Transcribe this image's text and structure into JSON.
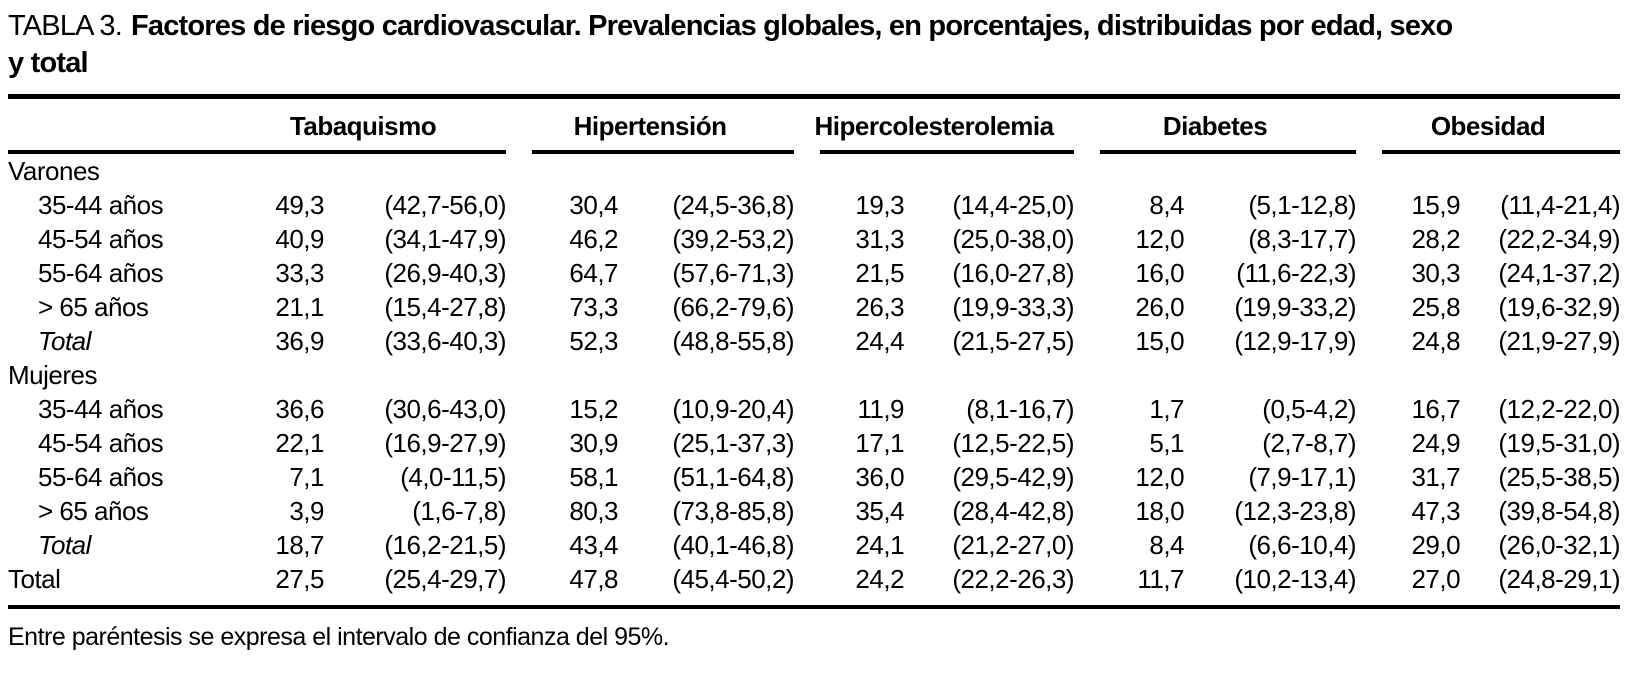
{
  "colors": {
    "text": "#000000",
    "background": "#ffffff",
    "rules": "#000000"
  },
  "title": {
    "prefix": "TABLA 3.",
    "line1": "Factores de riesgo cardiovascular. Prevalencias globales, en porcentajes, distribuidas por edad, sexo",
    "line2": "y total"
  },
  "table": {
    "columns": [
      "Tabaquismo",
      "Hipertensión",
      "Hipercolesterolemia",
      "Diabetes",
      "Obesidad"
    ],
    "subcolumns_per_group": [
      "prevalencia",
      "intervalo de confianza 95%"
    ],
    "rows": [
      {
        "label": "Varones",
        "indent": false,
        "italic": false,
        "cells": null
      },
      {
        "label": "35-44 años",
        "indent": true,
        "italic": false,
        "cells": [
          "49,3",
          "(42,7-56,0)",
          "30,4",
          "(24,5-36,8)",
          "19,3",
          "(14,4-25,0)",
          "8,4",
          "(5,1-12,8)",
          "15,9",
          "(11,4-21,4)"
        ]
      },
      {
        "label": "45-54 años",
        "indent": true,
        "italic": false,
        "cells": [
          "40,9",
          "(34,1-47,9)",
          "46,2",
          "(39,2-53,2)",
          "31,3",
          "(25,0-38,0)",
          "12,0",
          "(8,3-17,7)",
          "28,2",
          "(22,2-34,9)"
        ]
      },
      {
        "label": "55-64 años",
        "indent": true,
        "italic": false,
        "cells": [
          "33,3",
          "(26,9-40,3)",
          "64,7",
          "(57,6-71,3)",
          "21,5",
          "(16,0-27,8)",
          "16,0",
          "(11,6-22,3)",
          "30,3",
          "(24,1-37,2)"
        ]
      },
      {
        "label": "> 65 años",
        "indent": true,
        "italic": false,
        "cells": [
          "21,1",
          "(15,4-27,8)",
          "73,3",
          "(66,2-79,6)",
          "26,3",
          "(19,9-33,3)",
          "26,0",
          "(19,9-33,2)",
          "25,8",
          "(19,6-32,9)"
        ]
      },
      {
        "label": "Total",
        "indent": true,
        "italic": true,
        "cells": [
          "36,9",
          "(33,6-40,3)",
          "52,3",
          "(48,8-55,8)",
          "24,4",
          "(21,5-27,5)",
          "15,0",
          "(12,9-17,9)",
          "24,8",
          "(21,9-27,9)"
        ]
      },
      {
        "label": "Mujeres",
        "indent": false,
        "italic": false,
        "cells": null
      },
      {
        "label": "35-44 años",
        "indent": true,
        "italic": false,
        "cells": [
          "36,6",
          "(30,6-43,0)",
          "15,2",
          "(10,9-20,4)",
          "11,9",
          "(8,1-16,7)",
          "1,7",
          "(0,5-4,2)",
          "16,7",
          "(12,2-22,0)"
        ]
      },
      {
        "label": "45-54 años",
        "indent": true,
        "italic": false,
        "cells": [
          "22,1",
          "(16,9-27,9)",
          "30,9",
          "(25,1-37,3)",
          "17,1",
          "(12,5-22,5)",
          "5,1",
          "(2,7-8,7)",
          "24,9",
          "(19,5-31,0)"
        ]
      },
      {
        "label": "55-64 años",
        "indent": true,
        "italic": false,
        "cells": [
          "7,1",
          "(4,0-11,5)",
          "58,1",
          "(51,1-64,8)",
          "36,0",
          "(29,5-42,9)",
          "12,0",
          "(7,9-17,1)",
          "31,7",
          "(25,5-38,5)"
        ]
      },
      {
        "label": "> 65 años",
        "indent": true,
        "italic": false,
        "cells": [
          "3,9",
          "(1,6-7,8)",
          "80,3",
          "(73,8-85,8)",
          "35,4",
          "(28,4-42,8)",
          "18,0",
          "(12,3-23,8)",
          "47,3",
          "(39,8-54,8)"
        ]
      },
      {
        "label": "Total",
        "indent": true,
        "italic": true,
        "cells": [
          "18,7",
          "(16,2-21,5)",
          "43,4",
          "(40,1-46,8)",
          "24,1",
          "(21,2-27,0)",
          "8,4",
          "(6,6-10,4)",
          "29,0",
          "(26,0-32,1)"
        ]
      },
      {
        "label": "Total",
        "indent": false,
        "italic": false,
        "cells": [
          "27,5",
          "(25,4-29,7)",
          "47,8",
          "(45,4-50,2)",
          "24,2",
          "(22,2-26,3)",
          "11,7",
          "(10,2-13,4)",
          "27,0",
          "(24,8-29,1)"
        ]
      }
    ]
  },
  "footnote": "Entre paréntesis se expresa el intervalo de confianza del 95%."
}
